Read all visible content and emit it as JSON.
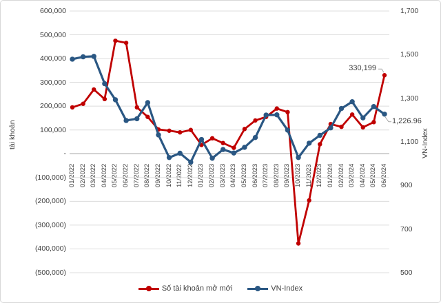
{
  "chart_data": {
    "type": "line",
    "title": "",
    "grid": true,
    "legend_position": "bottom",
    "categories": [
      "01/2022",
      "02/2022",
      "03/2022",
      "04/2022",
      "05/2022",
      "06/2022",
      "07/2022",
      "08/2022",
      "09/2022",
      "10/2022",
      "11/2022",
      "12/2022",
      "01/2023",
      "02/2023",
      "03/2023",
      "04/2023",
      "05/2023",
      "06/2023",
      "07/2023",
      "08/2023",
      "09/2023",
      "10/2023",
      "11/2023",
      "12/2023",
      "01/2024",
      "02/2024",
      "03/2024",
      "04/2024",
      "05/2024",
      "06/2024"
    ],
    "series": [
      {
        "name": "Số tài khoản mở mới",
        "axis": "left",
        "color": "#c00000",
        "marker": "circle",
        "values": [
          195000,
          210000,
          270000,
          230000,
          475000,
          466000,
          195000,
          155000,
          102000,
          97000,
          90000,
          100000,
          37000,
          65000,
          45000,
          25000,
          104000,
          140000,
          155000,
          190000,
          175000,
          -377000,
          -196000,
          40000,
          125000,
          113000,
          165000,
          111000,
          133000,
          330199
        ]
      },
      {
        "name": "VN-Index",
        "axis": "right",
        "color": "#2a5783",
        "marker": "circle",
        "values": [
          1479,
          1490,
          1492,
          1367,
          1293,
          1198,
          1206,
          1280,
          1132,
          1028,
          1048,
          1007,
          1111,
          1025,
          1065,
          1049,
          1075,
          1120,
          1223,
          1224,
          1154,
          1028,
          1094,
          1130,
          1164,
          1253,
          1284,
          1210,
          1262,
          1226.96
        ]
      }
    ],
    "left_axis": {
      "title": "tài khoản",
      "min": -500000,
      "max": 600000,
      "tick_labels": [
        "600,000",
        "500,000",
        "400,000",
        "300,000",
        "200,000",
        "100,000",
        "-",
        "(100,000)",
        "(200,000)",
        "(300,000)",
        "(400,000)",
        "(500,000)"
      ]
    },
    "right_axis": {
      "title": "VN-Index",
      "min": 500,
      "max": 1700,
      "tick_labels": [
        "1,700",
        "1,500",
        "1,300",
        "1,100",
        "900",
        "700",
        "500"
      ]
    },
    "annotations": [
      {
        "text": "330,199",
        "series": 0,
        "point": 29
      },
      {
        "text": "1,226.96",
        "series": 1,
        "point": 29
      }
    ]
  },
  "colors": {
    "gridline": "#dcdcdc",
    "zero_axis_line": "#b3b3b3",
    "leader_line": "#a6a6a6",
    "tick_text": "#404040"
  }
}
